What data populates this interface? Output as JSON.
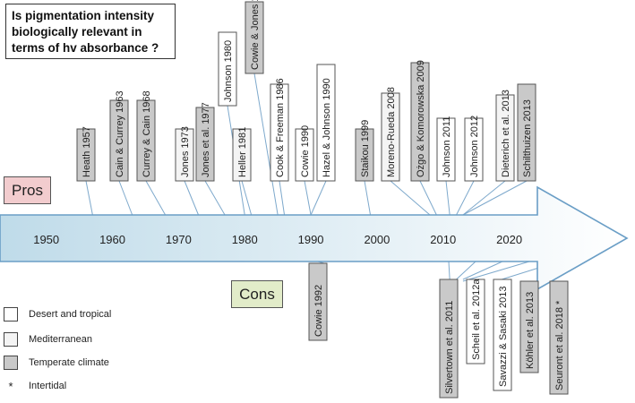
{
  "question": {
    "lines": [
      "Is pigmentation intensity",
      "biologically relevant in",
      "terms of hv absorbance ?"
    ]
  },
  "pros_label": "Pros",
  "cons_label": "Cons",
  "colors": {
    "desert": "#ffffff",
    "mediterranean": "#f4f4f4",
    "temperate": "#c9c9c9",
    "pros_fill": "#f2ccce",
    "cons_fill": "#e2ecc9",
    "arrow_stroke": "#6a9ec6",
    "arrow_fill_start": "#bfdbe9",
    "arrow_fill_end": "#ffffff",
    "leader_line": "#7ea9cc"
  },
  "legend": [
    {
      "label": "Desert and tropical",
      "climate": "desert"
    },
    {
      "label": "Mediterranean",
      "climate": "mediterranean"
    },
    {
      "label": "Temperate climate",
      "climate": "temperate"
    },
    {
      "label": "Intertidal",
      "symbol": "*"
    }
  ],
  "timeline": {
    "decades": [
      "1950",
      "1960",
      "1970",
      "1980",
      "1990",
      "2000",
      "2010",
      "2020"
    ],
    "year_start": 1943,
    "year_end": 2034
  },
  "pros": [
    {
      "label": "Heath 1957",
      "year": 1957,
      "climate": "temperate"
    },
    {
      "label": "Cain & Currey 1963",
      "year": 1963,
      "climate": "temperate"
    },
    {
      "label": "Currey & Cain 1968",
      "year": 1968,
      "climate": "temperate"
    },
    {
      "label": "Jones 1973",
      "year": 1973,
      "climate": "mediterranean"
    },
    {
      "label": "Jones et al. 1977",
      "year": 1977,
      "climate": "temperate"
    },
    {
      "label": "Johnson 1980",
      "year": 1980,
      "climate": "desert"
    },
    {
      "label": "Heller 1981",
      "year": 1981,
      "climate": "mediterranean"
    },
    {
      "label": "Cowie & Jones 1985",
      "year": 1985,
      "climate": "temperate"
    },
    {
      "label": "Cook & Freeman 1986",
      "year": 1986,
      "climate": "desert"
    },
    {
      "label": "Cowie 1990",
      "year": 1990,
      "climate": "desert"
    },
    {
      "label": "Hazel & Johnson 1990",
      "year": 1990,
      "climate": "desert"
    },
    {
      "label": "Staikou 1999",
      "year": 1999,
      "climate": "temperate"
    },
    {
      "label": "Moreno-Rueda 2008",
      "year": 2008,
      "climate": "mediterranean"
    },
    {
      "label": "Ożgo & Komorowska 2009",
      "year": 2009,
      "climate": "temperate"
    },
    {
      "label": "Johnson 2011",
      "year": 2011,
      "climate": "desert"
    },
    {
      "label": "Johnson 2012",
      "year": 2012,
      "climate": "desert"
    },
    {
      "label": "Dieterich et al. 2013",
      "year": 2013,
      "climate": "mediterranean"
    },
    {
      "label": "Schilthuizen 2013",
      "year": 2013,
      "climate": "temperate"
    }
  ],
  "cons": [
    {
      "label": "Cowie 1992",
      "year": 1992,
      "climate": "temperate"
    },
    {
      "label": "Silvertown et al. 2011",
      "year": 2011,
      "climate": "temperate"
    },
    {
      "label": "Scheil et al. 2012a",
      "year": 2012,
      "climate": "desert"
    },
    {
      "label": "Savazzi & Sasaki 2013",
      "year": 2013,
      "climate": "desert"
    },
    {
      "label": "Köhler et al. 2013",
      "year": 2013,
      "climate": "temperate"
    },
    {
      "label": "Seuront et al. 2018 *",
      "year": 2018,
      "climate": "temperate"
    }
  ]
}
